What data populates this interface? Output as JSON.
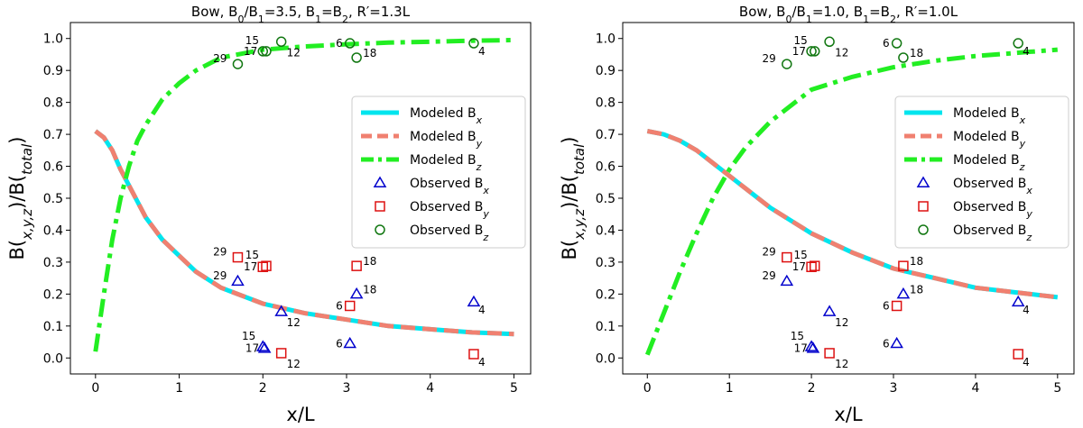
{
  "chart_data": [
    {
      "type": "line+scatter",
      "title": "Bow, B₀/B₁=3.5, B₁=B₂, R′=1.3L",
      "xlabel": "x/L",
      "ylabel": "B(x,y,z)/B(total)",
      "xlim": [
        -0.3,
        5.2
      ],
      "ylim": [
        -0.05,
        1.05
      ],
      "xticks": [
        0,
        1,
        2,
        3,
        4,
        5
      ],
      "yticks": [
        0.0,
        0.1,
        0.2,
        0.3,
        0.4,
        0.5,
        0.6,
        0.7,
        0.8,
        0.9,
        1.0
      ],
      "grid": false,
      "legend_position": "center-right",
      "legend": [
        "Modeled Bx",
        "Modeled By",
        "Modeled Bz",
        "Observed Bx",
        "Observed By",
        "Observed Bz"
      ],
      "modeled": {
        "Bxy": {
          "x": [
            0,
            0.1,
            0.2,
            0.3,
            0.4,
            0.5,
            0.6,
            0.8,
            1.0,
            1.2,
            1.5,
            2.0,
            2.5,
            3.0,
            3.5,
            4.0,
            4.5,
            5.0
          ],
          "y": [
            0.71,
            0.69,
            0.65,
            0.59,
            0.54,
            0.49,
            0.44,
            0.37,
            0.32,
            0.27,
            0.22,
            0.17,
            0.14,
            0.12,
            0.1,
            0.09,
            0.08,
            0.075
          ]
        },
        "Bz": {
          "x": [
            0,
            0.1,
            0.2,
            0.3,
            0.4,
            0.5,
            0.6,
            0.8,
            1.0,
            1.2,
            1.5,
            2.0,
            2.5,
            3.0,
            3.5,
            4.0,
            4.5,
            5.0
          ],
          "y": [
            0.02,
            0.2,
            0.37,
            0.5,
            0.6,
            0.68,
            0.73,
            0.81,
            0.86,
            0.9,
            0.94,
            0.965,
            0.975,
            0.982,
            0.987,
            0.99,
            0.993,
            0.995
          ]
        }
      },
      "observed": {
        "Bx": [
          {
            "x": 1.7,
            "y": 0.24,
            "label": "29"
          },
          {
            "x": 2.0,
            "y": 0.035,
            "label": "15"
          },
          {
            "x": 2.02,
            "y": 0.03,
            "label": "17"
          },
          {
            "x": 2.22,
            "y": 0.145,
            "label": "12"
          },
          {
            "x": 3.04,
            "y": 0.045,
            "label": "6"
          },
          {
            "x": 3.12,
            "y": 0.2,
            "label": "18"
          },
          {
            "x": 4.52,
            "y": 0.175,
            "label": "4"
          }
        ],
        "By": [
          {
            "x": 1.7,
            "y": 0.315,
            "label": "29"
          },
          {
            "x": 2.0,
            "y": 0.285,
            "label": "17"
          },
          {
            "x": 2.04,
            "y": 0.288,
            "label": "15"
          },
          {
            "x": 2.22,
            "y": 0.015,
            "label": "12"
          },
          {
            "x": 3.04,
            "y": 0.163,
            "label": "6"
          },
          {
            "x": 3.12,
            "y": 0.288,
            "label": "18"
          },
          {
            "x": 4.52,
            "y": 0.012,
            "label": "4"
          }
        ],
        "Bz": [
          {
            "x": 1.7,
            "y": 0.92,
            "label": "29"
          },
          {
            "x": 2.0,
            "y": 0.96,
            "label": "17"
          },
          {
            "x": 2.04,
            "y": 0.96,
            "label": "15"
          },
          {
            "x": 2.22,
            "y": 0.99,
            "label": "12"
          },
          {
            "x": 3.04,
            "y": 0.985,
            "label": "6"
          },
          {
            "x": 3.12,
            "y": 0.94,
            "label": "18"
          },
          {
            "x": 4.52,
            "y": 0.985,
            "label": "4"
          }
        ]
      }
    },
    {
      "type": "line+scatter",
      "title": "Bow, B₀/B₁=1.0, B₁=B₂, R′=1.0L",
      "xlabel": "x/L",
      "ylabel": "B(x,y,z)/B(total)",
      "xlim": [
        -0.3,
        5.2
      ],
      "ylim": [
        -0.05,
        1.05
      ],
      "xticks": [
        0,
        1,
        2,
        3,
        4,
        5
      ],
      "yticks": [
        0.0,
        0.1,
        0.2,
        0.3,
        0.4,
        0.5,
        0.6,
        0.7,
        0.8,
        0.9,
        1.0
      ],
      "grid": false,
      "legend_position": "center-right",
      "legend": [
        "Modeled Bx",
        "Modeled By",
        "Modeled Bz",
        "Observed Bx",
        "Observed By",
        "Observed Bz"
      ],
      "modeled": {
        "Bxy": {
          "x": [
            0,
            0.2,
            0.4,
            0.6,
            0.8,
            1.0,
            1.2,
            1.5,
            2.0,
            2.5,
            3.0,
            3.5,
            4.0,
            4.5,
            5.0
          ],
          "y": [
            0.71,
            0.7,
            0.68,
            0.65,
            0.61,
            0.57,
            0.53,
            0.47,
            0.39,
            0.33,
            0.28,
            0.25,
            0.22,
            0.205,
            0.19
          ]
        },
        "Bz": {
          "x": [
            0,
            0.2,
            0.4,
            0.6,
            0.8,
            1.0,
            1.2,
            1.5,
            2.0,
            2.5,
            3.0,
            3.5,
            4.0,
            4.5,
            5.0
          ],
          "y": [
            0.01,
            0.14,
            0.27,
            0.39,
            0.5,
            0.59,
            0.66,
            0.74,
            0.84,
            0.88,
            0.91,
            0.93,
            0.945,
            0.955,
            0.965
          ]
        }
      },
      "observed": {
        "Bx": [
          {
            "x": 1.7,
            "y": 0.24,
            "label": "29"
          },
          {
            "x": 2.0,
            "y": 0.035,
            "label": "15"
          },
          {
            "x": 2.02,
            "y": 0.03,
            "label": "17"
          },
          {
            "x": 2.22,
            "y": 0.145,
            "label": "12"
          },
          {
            "x": 3.04,
            "y": 0.045,
            "label": "6"
          },
          {
            "x": 3.12,
            "y": 0.2,
            "label": "18"
          },
          {
            "x": 4.52,
            "y": 0.175,
            "label": "4"
          }
        ],
        "By": [
          {
            "x": 1.7,
            "y": 0.315,
            "label": "29"
          },
          {
            "x": 2.0,
            "y": 0.285,
            "label": "17"
          },
          {
            "x": 2.04,
            "y": 0.288,
            "label": "15"
          },
          {
            "x": 2.22,
            "y": 0.015,
            "label": "12"
          },
          {
            "x": 3.04,
            "y": 0.163,
            "label": "6"
          },
          {
            "x": 3.12,
            "y": 0.288,
            "label": "18"
          },
          {
            "x": 4.52,
            "y": 0.012,
            "label": "4"
          }
        ],
        "Bz": [
          {
            "x": 1.7,
            "y": 0.92,
            "label": "29"
          },
          {
            "x": 2.0,
            "y": 0.96,
            "label": "17"
          },
          {
            "x": 2.04,
            "y": 0.96,
            "label": "15"
          },
          {
            "x": 2.22,
            "y": 0.99,
            "label": "12"
          },
          {
            "x": 3.04,
            "y": 0.985,
            "label": "6"
          },
          {
            "x": 3.12,
            "y": 0.94,
            "label": "18"
          },
          {
            "x": 4.52,
            "y": 0.985,
            "label": "4"
          }
        ]
      }
    }
  ],
  "colors": {
    "modeled_bx": "#00e5ee",
    "modeled_by": "#f08070",
    "modeled_bz": "#22ee22",
    "observed_bx": "#0000cc",
    "observed_by": "#dd1111",
    "observed_bz": "#117711"
  }
}
